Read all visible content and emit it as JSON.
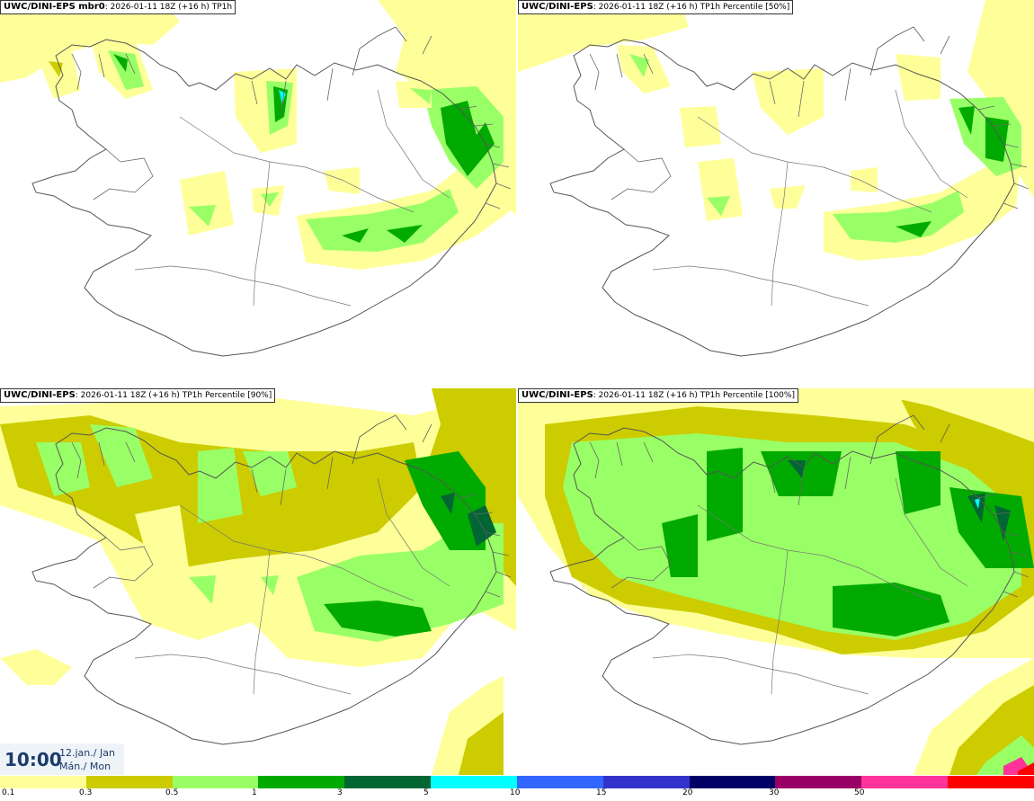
{
  "panels": [
    {
      "label": "UWC/DINI-EPS mbr0",
      "info": ": 2026-01-11 18Z (+16 h) TP1h"
    },
    {
      "label": "UWC/DINI-EPS",
      "info": ": 2026-01-11 18Z (+16 h) TP1h Percentile [50%]"
    },
    {
      "label": "UWC/DINI-EPS",
      "info": ": 2026-01-11 18Z (+16 h) TP1h Percentile [90%]"
    },
    {
      "label": "UWC/DINI-EPS",
      "info": ": 2026-01-11 18Z (+16 h) TP1h Percentile [100%]"
    }
  ],
  "valid_time": {
    "time": "10:00",
    "date": "12.jan./ Jan",
    "weekday": "Mán./ Mon"
  },
  "legend": {
    "colors": [
      "#ffff99",
      "#cccc00",
      "#99ff66",
      "#00aa00",
      "#006633",
      "#00ffff",
      "#3366ff",
      "#3333cc",
      "#000066",
      "#990066",
      "#ff3399",
      "#ff0000"
    ],
    "ticks": [
      "0.1",
      "0.3",
      "0.5",
      "1",
      "3",
      "5",
      "10",
      "15",
      "20",
      "30",
      "50"
    ]
  }
}
